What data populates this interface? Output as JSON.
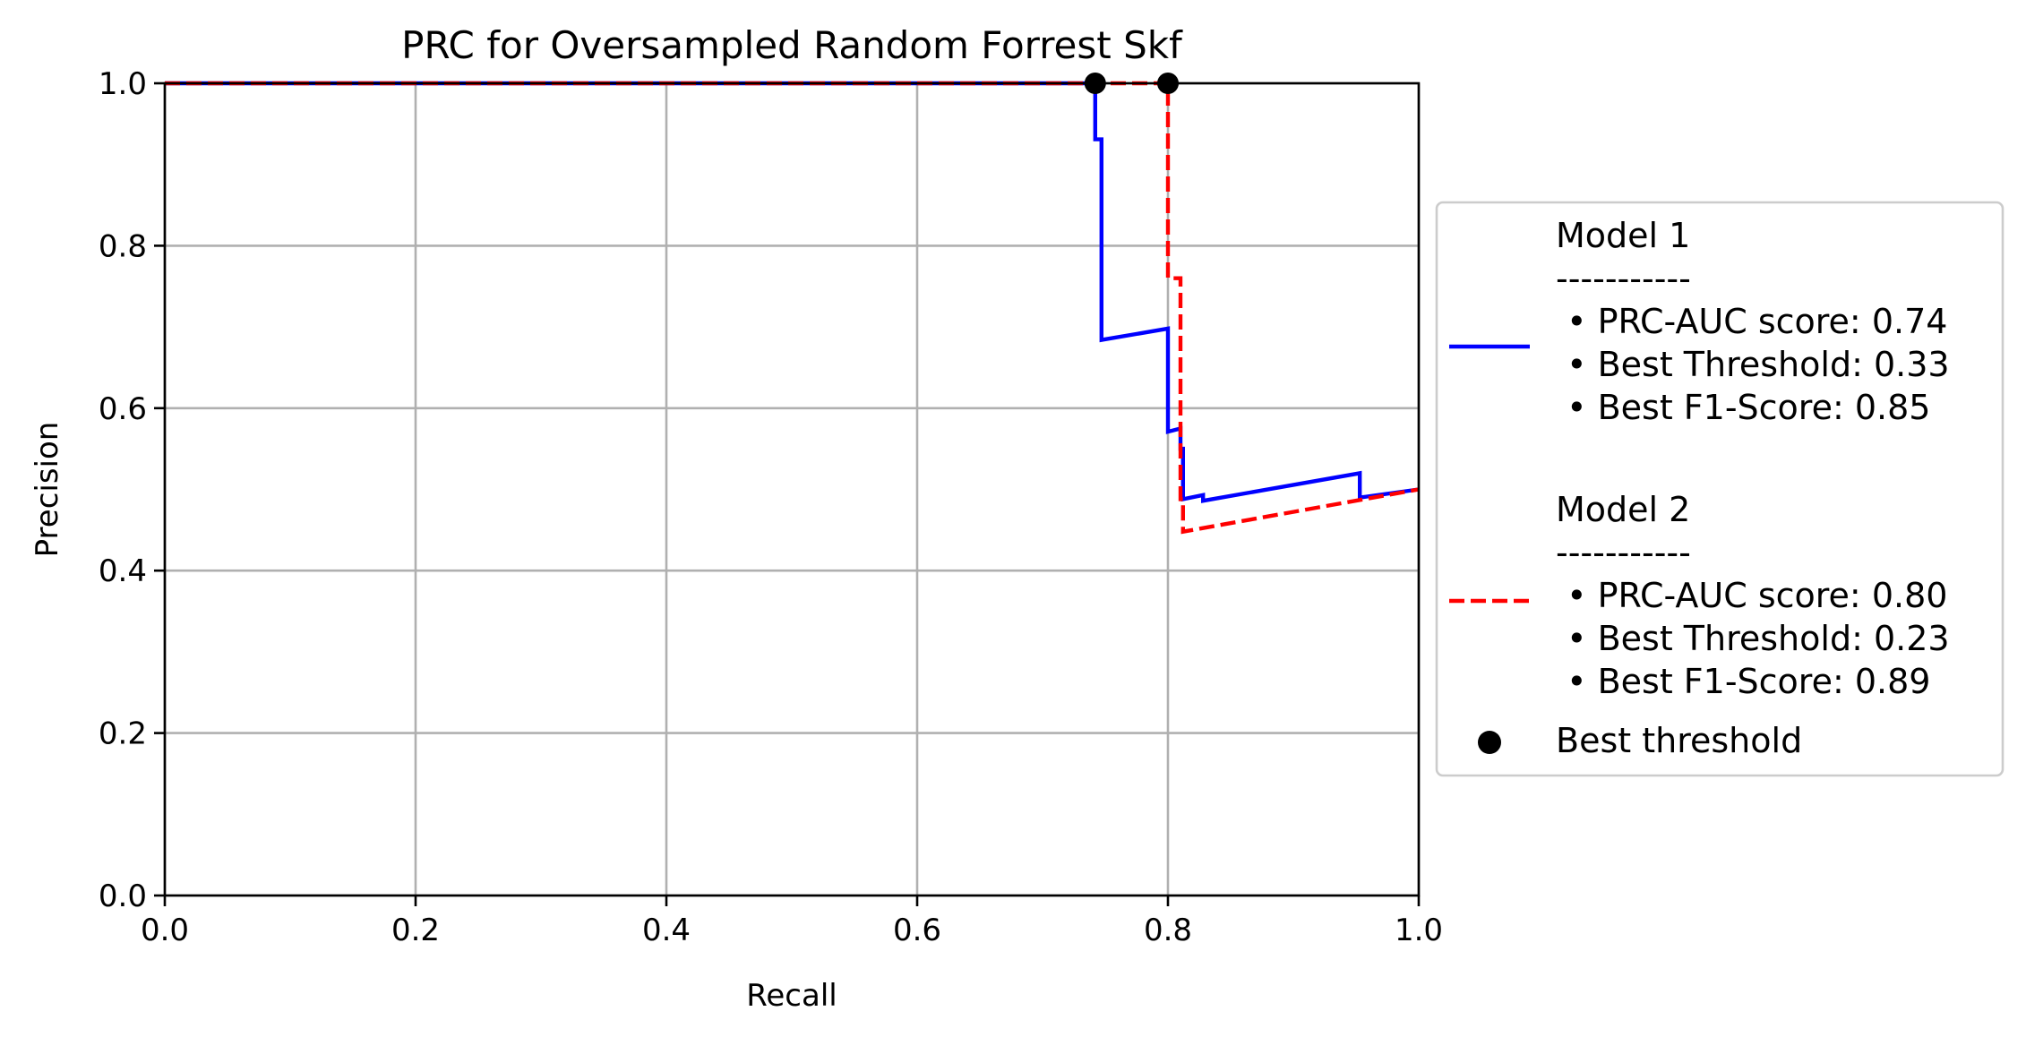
{
  "chart_data": {
    "type": "line",
    "title": "PRC for Oversampled Random Forrest Skf",
    "xlabel": "Recall",
    "ylabel": "Precision",
    "xlim": [
      0.0,
      1.0
    ],
    "ylim": [
      0.0,
      1.0
    ],
    "x_ticks": [
      "0.0",
      "0.2",
      "0.4",
      "0.6",
      "0.8",
      "1.0"
    ],
    "y_ticks": [
      "0.0",
      "0.2",
      "0.4",
      "0.6",
      "0.8",
      "1.0"
    ],
    "grid": true,
    "legend_position": "outside right",
    "series": [
      {
        "name": "Model 1",
        "color": "#0000ff",
        "line_style": "solid",
        "legend_lines": [
          "Model 1",
          "-----------",
          " • PRC-AUC score: 0.74",
          " • Best Threshold: 0.33",
          " • Best F1-Score: 0.85"
        ],
        "points": [
          [
            0.0,
            1.0
          ],
          [
            0.742,
            1.0
          ],
          [
            0.742,
            0.931
          ],
          [
            0.747,
            0.931
          ],
          [
            0.747,
            0.684
          ],
          [
            0.8,
            0.698
          ],
          [
            0.8,
            0.571
          ],
          [
            0.81,
            0.575
          ],
          [
            0.81,
            0.55
          ],
          [
            0.812,
            0.55
          ],
          [
            0.812,
            0.488
          ],
          [
            0.828,
            0.493
          ],
          [
            0.828,
            0.486
          ],
          [
            0.953,
            0.52
          ],
          [
            0.953,
            0.49
          ],
          [
            1.0,
            0.5
          ]
        ]
      },
      {
        "name": "Model 2",
        "color": "#ff0000",
        "line_style": "dashed",
        "legend_lines": [
          "Model 2",
          "-----------",
          " • PRC-AUC score: 0.80",
          " • Best Threshold: 0.23",
          " • Best F1-Score: 0.89"
        ],
        "points": [
          [
            0.0,
            1.0
          ],
          [
            0.8,
            1.0
          ],
          [
            0.8,
            0.76
          ],
          [
            0.81,
            0.76
          ],
          [
            0.81,
            0.488
          ],
          [
            0.812,
            0.488
          ],
          [
            0.812,
            0.448
          ],
          [
            1.0,
            0.5
          ]
        ]
      }
    ],
    "best_threshold_points": {
      "label": "Best threshold",
      "color": "#000000",
      "points": [
        [
          0.742,
          1.0
        ],
        [
          0.8,
          1.0
        ]
      ]
    }
  }
}
